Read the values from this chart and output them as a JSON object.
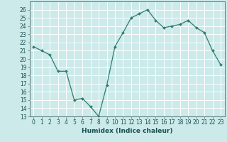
{
  "x": [
    0,
    1,
    2,
    3,
    4,
    5,
    6,
    7,
    8,
    9,
    10,
    11,
    12,
    13,
    14,
    15,
    16,
    17,
    18,
    19,
    20,
    21,
    22,
    23
  ],
  "y": [
    21.5,
    21.0,
    20.5,
    18.5,
    18.5,
    15.0,
    15.2,
    14.2,
    13.0,
    16.8,
    21.5,
    23.2,
    25.0,
    25.5,
    26.0,
    24.7,
    23.8,
    24.0,
    24.2,
    24.7,
    23.8,
    23.2,
    21.0,
    19.3
  ],
  "xlabel": "Humidex (Indice chaleur)",
  "ylim": [
    13,
    27
  ],
  "xlim": [
    -0.5,
    23.5
  ],
  "yticks": [
    13,
    14,
    15,
    16,
    17,
    18,
    19,
    20,
    21,
    22,
    23,
    24,
    25,
    26
  ],
  "xticks": [
    0,
    1,
    2,
    3,
    4,
    5,
    6,
    7,
    8,
    9,
    10,
    11,
    12,
    13,
    14,
    15,
    16,
    17,
    18,
    19,
    20,
    21,
    22,
    23
  ],
  "line_color": "#2e7d6e",
  "bg_color": "#cceaea",
  "grid_color": "#ffffff",
  "label_fontsize": 6.5,
  "tick_fontsize": 5.5
}
